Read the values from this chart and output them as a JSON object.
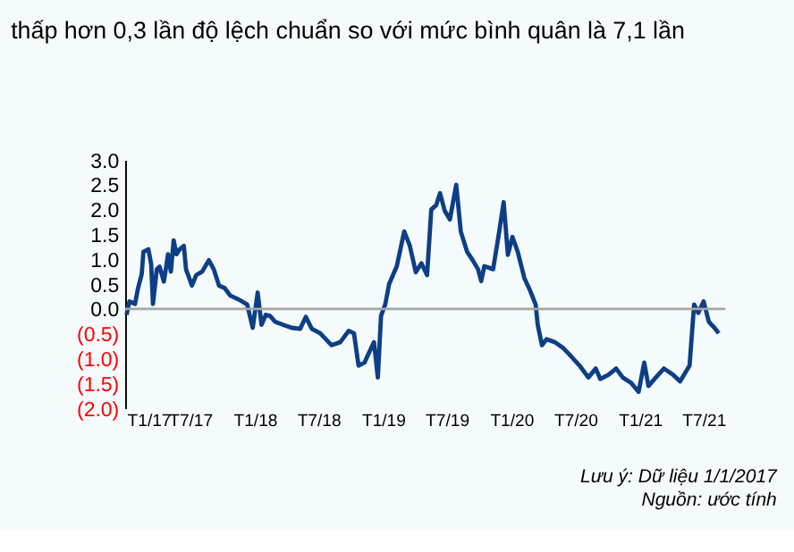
{
  "chart_data": {
    "type": "line",
    "title": "thấp hơn 0,3 lần độ lệch chuẩn so với mức bình quân là 7,1 lần",
    "x": [
      "2017-01-01",
      "2017-01-09",
      "2017-01-25",
      "2017-02-02",
      "2017-02-13",
      "2017-02-18",
      "2017-03-04",
      "2017-03-12",
      "2017-03-17",
      "2017-03-28",
      "2017-04-05",
      "2017-04-17",
      "2017-04-29",
      "2017-05-07",
      "2017-05-15",
      "2017-05-23",
      "2017-06-01",
      "2017-06-13",
      "2017-06-19",
      "2017-07-06",
      "2017-07-18",
      "2017-08-04",
      "2017-08-23",
      "2017-09-06",
      "2017-09-21",
      "2017-10-07",
      "2017-10-23",
      "2017-11-16",
      "2017-12-10",
      "2017-12-26",
      "2018-01-09",
      "2018-01-20",
      "2018-02-01",
      "2018-02-13",
      "2018-02-28",
      "2018-03-23",
      "2018-04-16",
      "2018-05-10",
      "2018-05-26",
      "2018-06-12",
      "2018-07-06",
      "2018-08-07",
      "2018-09-01",
      "2018-09-25",
      "2018-10-10",
      "2018-10-23",
      "2018-11-09",
      "2018-11-20",
      "2018-12-06",
      "2018-12-17",
      "2018-12-26",
      "2019-01-07",
      "2019-01-18",
      "2019-02-09",
      "2019-03-02",
      "2019-03-18",
      "2019-04-04",
      "2019-04-20",
      "2019-05-06",
      "2019-05-18",
      "2019-06-01",
      "2019-06-12",
      "2019-06-25",
      "2019-07-10",
      "2019-07-28",
      "2019-08-10",
      "2019-08-28",
      "2019-09-13",
      "2019-09-28",
      "2019-10-07",
      "2019-10-16",
      "2019-11-10",
      "2019-11-25",
      "2019-12-10",
      "2019-12-22",
      "2020-01-04",
      "2020-01-19",
      "2020-02-07",
      "2020-02-22",
      "2020-03-10",
      "2020-03-16",
      "2020-03-28",
      "2020-04-10",
      "2020-05-04",
      "2020-05-28",
      "2020-06-13",
      "2020-07-13",
      "2020-08-07",
      "2020-08-28",
      "2020-09-10",
      "2020-10-04",
      "2020-10-25",
      "2020-11-13",
      "2020-12-07",
      "2020-12-28",
      "2021-01-13",
      "2021-01-25",
      "2021-02-15",
      "2021-03-10",
      "2021-04-04",
      "2021-04-25",
      "2021-05-22",
      "2021-06-04",
      "2021-06-16",
      "2021-07-01",
      "2021-07-16",
      "2021-08-01",
      "2021-08-13"
    ],
    "series": [
      {
        "color": "#0d3f86",
        "values": [
          -0.12,
          0.15,
          0.1,
          0.4,
          0.7,
          1.15,
          1.2,
          0.9,
          0.1,
          0.8,
          0.85,
          0.55,
          1.1,
          0.75,
          1.38,
          1.1,
          1.2,
          1.27,
          0.8,
          0.47,
          0.68,
          0.75,
          0.98,
          0.8,
          0.47,
          0.42,
          0.27,
          0.19,
          0.09,
          -0.38,
          0.33,
          -0.32,
          -0.12,
          -0.14,
          -0.26,
          -0.32,
          -0.38,
          -0.4,
          -0.16,
          -0.4,
          -0.49,
          -0.73,
          -0.67,
          -0.44,
          -0.49,
          -1.14,
          -1.08,
          -0.91,
          -0.67,
          -1.38,
          -0.14,
          0.09,
          0.5,
          0.86,
          1.56,
          1.27,
          0.74,
          0.92,
          0.68,
          2.0,
          2.09,
          2.33,
          1.98,
          1.8,
          2.5,
          1.56,
          1.15,
          0.98,
          0.8,
          0.56,
          0.86,
          0.8,
          1.45,
          2.15,
          1.09,
          1.45,
          1.15,
          0.62,
          0.39,
          0.09,
          -0.32,
          -0.73,
          -0.61,
          -0.67,
          -0.79,
          -0.91,
          -1.14,
          -1.38,
          -1.2,
          -1.41,
          -1.32,
          -1.2,
          -1.38,
          -1.49,
          -1.67,
          -1.08,
          -1.55,
          -1.38,
          -1.2,
          -1.32,
          -1.46,
          -1.14,
          0.09,
          -0.08,
          0.15,
          -0.26,
          -0.38,
          -0.49
        ]
      }
    ],
    "xlim": [
      "2016-12-28",
      "2021-09-01"
    ],
    "xticks": [
      {
        "value": "2017-01-01",
        "label": "T1/17"
      },
      {
        "value": "2017-07-01",
        "label": "T7/17"
      },
      {
        "value": "2018-01-01",
        "label": "T1/18"
      },
      {
        "value": "2018-07-01",
        "label": "T7/18"
      },
      {
        "value": "2019-01-01",
        "label": "T1/19"
      },
      {
        "value": "2019-07-01",
        "label": "T7/19"
      },
      {
        "value": "2020-01-01",
        "label": "T1/20"
      },
      {
        "value": "2020-07-01",
        "label": "T7/20"
      },
      {
        "value": "2021-01-01",
        "label": "T1/21"
      },
      {
        "value": "2021-07-01",
        "label": "T7/21"
      }
    ],
    "ylim": [
      -2,
      3
    ],
    "yticks": [
      {
        "value": 3,
        "label": "3.0"
      },
      {
        "value": 2.5,
        "label": "2.5"
      },
      {
        "value": 2,
        "label": "2.0"
      },
      {
        "value": 1.5,
        "label": "1.5"
      },
      {
        "value": 1,
        "label": "1.0"
      },
      {
        "value": 0.5,
        "label": "0.5"
      },
      {
        "value": 0,
        "label": "0.0"
      },
      {
        "value": -0.5,
        "label": "(0.5)"
      },
      {
        "value": -1,
        "label": "(1.0)"
      },
      {
        "value": -1.5,
        "label": "(1.5)"
      },
      {
        "value": -2,
        "label": "(2.0)"
      }
    ],
    "ref_lines": [
      {
        "axis": "y",
        "value": 0,
        "color": "#a6a6a6"
      }
    ],
    "grid": false,
    "marker": "none",
    "line_style": "solid",
    "annotations": [
      "Lưu ý: Dữ liệu 1/1/2017",
      "Nguồn: ước tính"
    ]
  }
}
